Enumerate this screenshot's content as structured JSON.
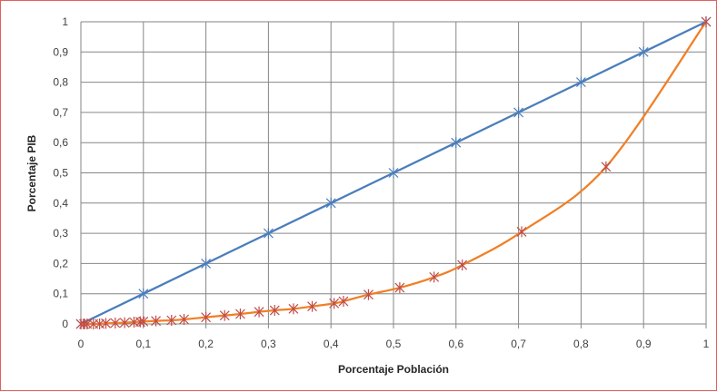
{
  "chart_data": {
    "type": "line",
    "xlabel": "Porcentaje Población",
    "ylabel": "Porcentaje PIB",
    "xlim": [
      0,
      1
    ],
    "ylim": [
      0,
      1
    ],
    "x_ticks": [
      "0",
      "0,1",
      "0,2",
      "0,3",
      "0,4",
      "0,5",
      "0,6",
      "0,7",
      "0,8",
      "0,9",
      "1"
    ],
    "y_ticks": [
      "0",
      "0,1",
      "0,2",
      "0,3",
      "0,4",
      "0,5",
      "0,6",
      "0,7",
      "0,8",
      "0,9",
      "1"
    ],
    "grid": true,
    "legend": "none",
    "series": [
      {
        "color": "#4a7ebb",
        "marker_color": "#4a7ebb",
        "smooth": false,
        "x": [
          0,
          0.1,
          0.2,
          0.3,
          0.4,
          0.5,
          0.6,
          0.7,
          0.8,
          0.9,
          1
        ],
        "y": [
          0,
          0.1,
          0.2,
          0.3,
          0.4,
          0.5,
          0.6,
          0.7,
          0.8,
          0.9,
          1
        ]
      },
      {
        "color": "#f07f26",
        "marker_color": "#be4b48",
        "smooth": true,
        "x": [
          0,
          0.005,
          0.01,
          0.02,
          0.03,
          0.04,
          0.055,
          0.07,
          0.085,
          0.095,
          0.1,
          0.12,
          0.145,
          0.165,
          0.2,
          0.23,
          0.255,
          0.285,
          0.31,
          0.34,
          0.37,
          0.405,
          0.42,
          0.46,
          0.51,
          0.565,
          0.61,
          0.705,
          0.84,
          1
        ],
        "y": [
          0,
          0,
          0,
          0,
          0,
          0.002,
          0.003,
          0.004,
          0.006,
          0.007,
          0.008,
          0.01,
          0.012,
          0.015,
          0.022,
          0.028,
          0.033,
          0.04,
          0.045,
          0.05,
          0.058,
          0.068,
          0.075,
          0.097,
          0.12,
          0.155,
          0.195,
          0.305,
          0.52,
          1
        ]
      }
    ]
  }
}
